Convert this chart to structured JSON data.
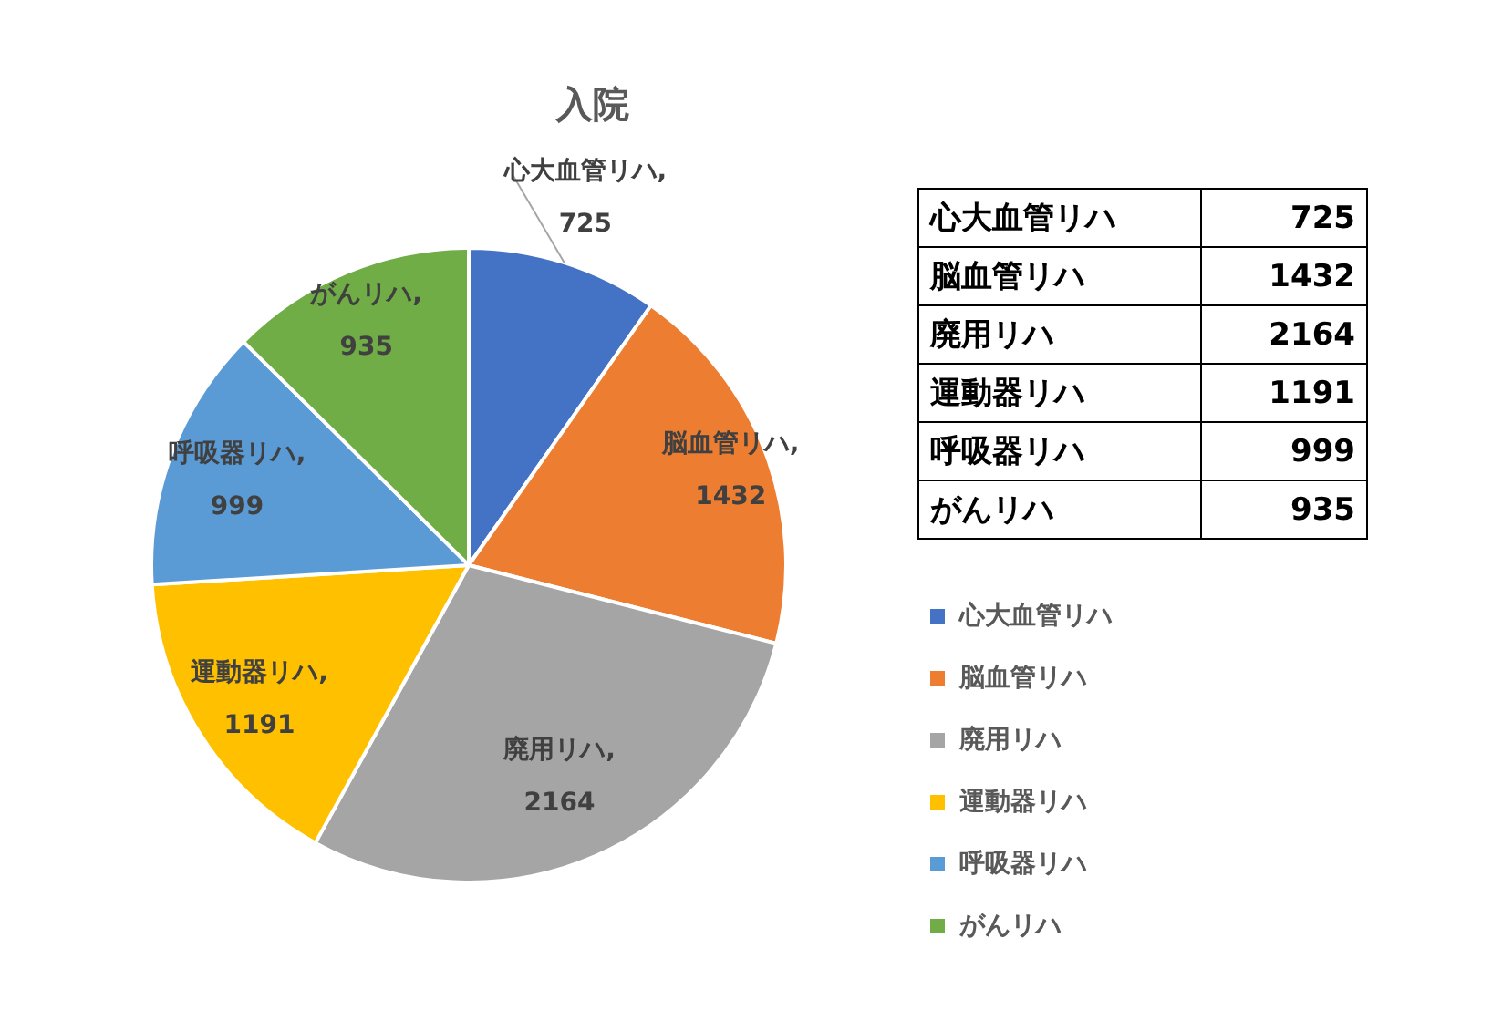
{
  "chart_data": [
    {
      "type": "pie",
      "title": "入院",
      "categories": [
        "心大血管リハ",
        "脳血管リハ",
        "廃用リハ",
        "運動器リハ",
        "呼吸器リハ",
        "がんリハ"
      ],
      "values": [
        725,
        1432,
        2164,
        1191,
        999,
        935
      ],
      "colors": [
        "#4472c4",
        "#ed7d31",
        "#a5a5a5",
        "#ffc000",
        "#5b9bd5",
        "#70ad47"
      ],
      "value_labels": [
        "心大血管リハ, 725",
        "脳血管リハ, 1432",
        "廃用リハ, 2164",
        "運動器リハ, 1191",
        "呼吸器リハ, 999",
        "がんリハ, 935"
      ],
      "legend": "right"
    },
    {
      "type": "other",
      "categories": [
        "心大血管リハ",
        "脳血管リハ",
        "廃用リハ",
        "運動器リハ",
        "呼吸器リハ",
        "がんリハ"
      ],
      "values": [
        725,
        1432,
        2164,
        1191,
        999,
        935
      ],
      "data_labels": true
    }
  ]
}
